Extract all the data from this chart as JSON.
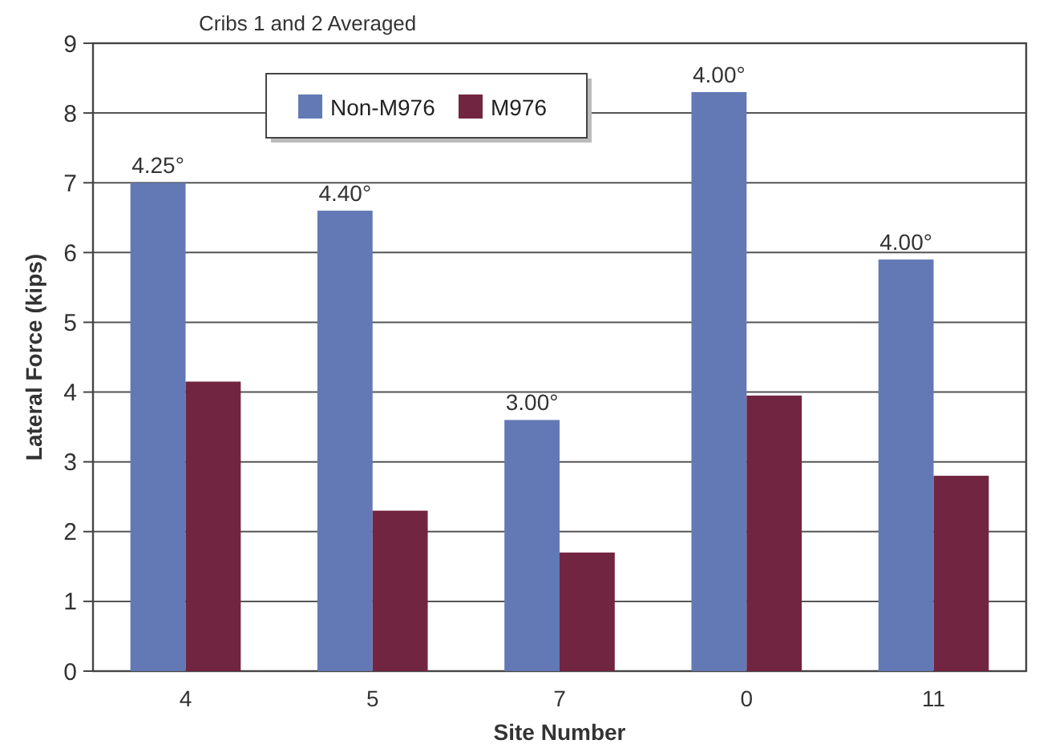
{
  "chart_data": {
    "type": "bar",
    "title": "Cribs 1 and 2 Averaged",
    "xlabel": "Site Number",
    "ylabel": "Lateral Force (kips)",
    "categories": [
      "4",
      "5",
      "7",
      "0",
      "11"
    ],
    "series": [
      {
        "name": "Non-M976",
        "color": "#6379b5",
        "values": [
          7.0,
          6.6,
          3.6,
          8.3,
          5.9
        ]
      },
      {
        "name": "M976",
        "color": "#722540",
        "values": [
          4.15,
          2.3,
          1.7,
          3.95,
          2.8
        ]
      }
    ],
    "annotations": [
      {
        "text": "4.25°",
        "x": "4",
        "y": 7.0
      },
      {
        "text": "4.40°",
        "x": "5",
        "y": 6.6
      },
      {
        "text": "3.00°",
        "x": "7",
        "y": 3.6
      },
      {
        "text": "4.00°",
        "x": "0",
        "y": 8.3
      },
      {
        "text": "4.00°",
        "x": "11",
        "y": 5.9
      }
    ],
    "ylim": [
      0,
      9
    ],
    "yticks": [
      0,
      1,
      2,
      3,
      4,
      5,
      6,
      7,
      8,
      9
    ],
    "grid": "y",
    "legend": "top left"
  }
}
